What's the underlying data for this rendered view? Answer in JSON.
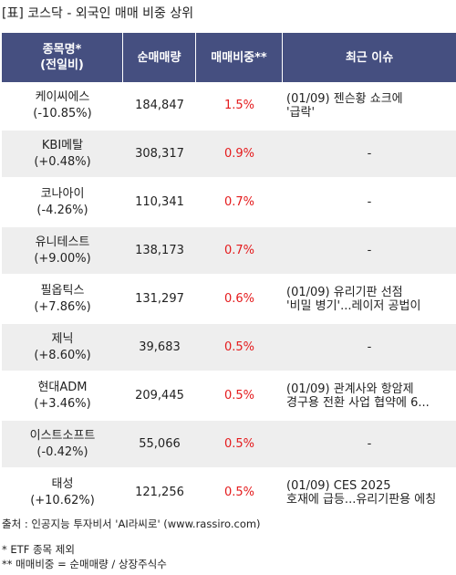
{
  "title": "[표] 코스닥 - 외국인 매매 비중 상위",
  "headers": {
    "name_line1": "종목명*",
    "name_line2": "(전일비)",
    "volume": "순매매량",
    "ratio": "매매비중**",
    "issue": "최근 이슈"
  },
  "rows": [
    {
      "name": "케이씨에스",
      "change": "(-10.85%)",
      "volume": "184,847",
      "ratio": "1.5%",
      "issue_lines": [
        "(01/09) 젠슨황 쇼크에",
        "'급락'"
      ]
    },
    {
      "name": "KBI메탈",
      "change": "(+0.48%)",
      "volume": "308,317",
      "ratio": "0.9%",
      "issue_lines": [
        "-"
      ]
    },
    {
      "name": "코나아이",
      "change": "(-4.26%)",
      "volume": "110,341",
      "ratio": "0.7%",
      "issue_lines": [
        "-"
      ]
    },
    {
      "name": "유니테스트",
      "change": "(+9.00%)",
      "volume": "138,173",
      "ratio": "0.7%",
      "issue_lines": [
        "-"
      ]
    },
    {
      "name": "필옵틱스",
      "change": "(+7.86%)",
      "volume": "131,297",
      "ratio": "0.6%",
      "issue_lines": [
        "(01/09) 유리기판 선점",
        "'비밀 병기'...레이저 공법이"
      ]
    },
    {
      "name": "제닉",
      "change": "(+8.60%)",
      "volume": "39,683",
      "ratio": "0.5%",
      "issue_lines": [
        "-"
      ]
    },
    {
      "name": "현대ADM",
      "change": "(+3.46%)",
      "volume": "209,445",
      "ratio": "0.5%",
      "issue_lines": [
        "(01/09) 관계사와 항암제",
        "경구용 전환 사업 협약에 6..."
      ]
    },
    {
      "name": "이스트소프트",
      "change": "(-0.42%)",
      "volume": "55,066",
      "ratio": "0.5%",
      "issue_lines": [
        "-"
      ]
    },
    {
      "name": "태성",
      "change": "(+10.62%)",
      "volume": "121,256",
      "ratio": "0.5%",
      "issue_lines": [
        "(01/09) CES 2025",
        "호재에 급등...유리기판용 에칭"
      ]
    }
  ],
  "footer": {
    "source": "출처 : 인공지능 투자비서 'AI라씨로' (www.rassiro.com)",
    "note1": "* ETF 종목 제외",
    "note2": "** 매매비중 = 순매매량 / 상장주식수"
  }
}
